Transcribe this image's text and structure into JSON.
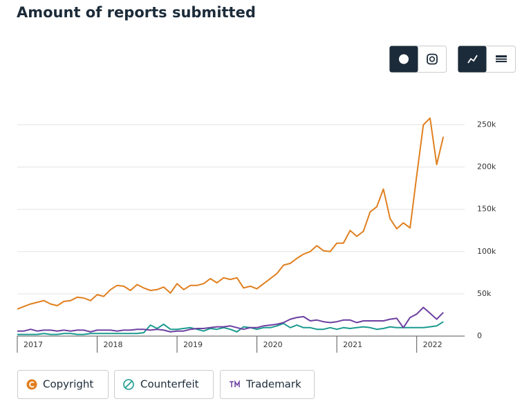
{
  "chart_data": {
    "type": "line",
    "title": "Amount of reports submitted",
    "x": [
      2017,
      2017.083,
      2017.167,
      2017.25,
      2017.333,
      2017.417,
      2017.5,
      2017.583,
      2017.667,
      2017.75,
      2017.833,
      2017.917,
      2018,
      2018.083,
      2018.167,
      2018.25,
      2018.333,
      2018.417,
      2018.5,
      2018.583,
      2018.667,
      2018.75,
      2018.833,
      2018.917,
      2019,
      2019.083,
      2019.167,
      2019.25,
      2019.333,
      2019.417,
      2019.5,
      2019.583,
      2019.667,
      2019.75,
      2019.833,
      2019.917,
      2020,
      2020.083,
      2020.167,
      2020.25,
      2020.333,
      2020.417,
      2020.5,
      2020.583,
      2020.667,
      2020.75,
      2020.833,
      2020.917,
      2021,
      2021.083,
      2021.167,
      2021.25,
      2021.333,
      2021.417,
      2021.5,
      2021.583,
      2021.667,
      2021.75,
      2021.833,
      2021.917,
      2022,
      2022.083,
      2022.167,
      2022.25,
      2022.333
    ],
    "series": [
      {
        "name": "Copyright",
        "color": "#e07f1e",
        "values": [
          32000,
          35000,
          38000,
          40000,
          42000,
          38000,
          36000,
          41000,
          42000,
          46000,
          45000,
          42000,
          49000,
          47000,
          55000,
          60000,
          59000,
          54000,
          61000,
          57000,
          54000,
          55000,
          58000,
          51000,
          62000,
          55000,
          60000,
          60000,
          62000,
          68000,
          63000,
          69000,
          67000,
          69000,
          57000,
          59000,
          56000,
          62000,
          68000,
          74000,
          84000,
          86000,
          92000,
          97000,
          100000,
          107000,
          101000,
          100000,
          110000,
          110000,
          125000,
          118000,
          124000,
          147000,
          153000,
          174000,
          139000,
          127000,
          134000,
          128000,
          190000,
          250000,
          258000,
          203000,
          236000
        ]
      },
      {
        "name": "Counterfeit",
        "color": "#1a9a8f",
        "values": [
          2000,
          2000,
          2000,
          2000,
          3000,
          2000,
          2000,
          3000,
          3000,
          2000,
          2000,
          3000,
          3000,
          3000,
          3000,
          3000,
          3000,
          3000,
          3000,
          4000,
          13000,
          9000,
          14000,
          8000,
          8000,
          9000,
          10000,
          8000,
          6000,
          9000,
          8000,
          10000,
          8000,
          5000,
          11000,
          10000,
          8000,
          10000,
          10000,
          12000,
          15000,
          10000,
          13000,
          10000,
          10000,
          8000,
          8000,
          10000,
          8000,
          10000,
          9000,
          10000,
          11000,
          10000,
          8000,
          9000,
          11000,
          10000,
          10000,
          10000,
          10000,
          10000,
          11000,
          12000,
          17000
        ]
      },
      {
        "name": "Trademark",
        "color": "#6b3fa0",
        "values": [
          6000,
          6000,
          8000,
          6000,
          7000,
          7000,
          6000,
          7000,
          6000,
          7000,
          7000,
          5000,
          7000,
          7000,
          7000,
          6000,
          7000,
          7000,
          8000,
          8000,
          7000,
          8000,
          7000,
          5000,
          6000,
          6000,
          8000,
          9000,
          9000,
          10000,
          11000,
          11000,
          12000,
          10000,
          8000,
          10000,
          10000,
          12000,
          13000,
          14000,
          16000,
          20000,
          22000,
          23000,
          18000,
          19000,
          17000,
          16000,
          17000,
          19000,
          19000,
          16000,
          18000,
          18000,
          18000,
          18000,
          20000,
          21000,
          10000,
          22000,
          26000,
          34000,
          27000,
          20000,
          28000
        ]
      }
    ],
    "xlim": [
      2017,
      2022.6
    ],
    "xticks": [
      2017,
      2018,
      2019,
      2020,
      2021,
      2022
    ],
    "ylim": [
      0,
      275000
    ],
    "yticks": [
      0,
      {
        "value": 50000,
        "label": "50k"
      },
      {
        "value": 100000,
        "label": "100k"
      },
      {
        "value": 150000,
        "label": "150k"
      },
      {
        "value": 200000,
        "label": "200k"
      },
      {
        "value": 250000,
        "label": "250k"
      }
    ],
    "grid": true
  }
}
